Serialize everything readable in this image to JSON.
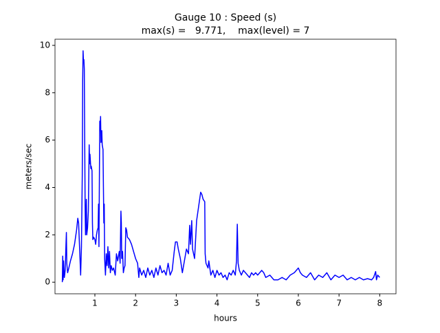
{
  "chart_data": {
    "type": "line",
    "title": "Gauge 10 : Speed (s)",
    "subtitle": "max(s) =   9.771,    max(level) = 7",
    "x_label": "hours",
    "y_label": "meters/sec",
    "xlim": [
      0.02,
      8.4
    ],
    "ylim": [
      -0.489,
      10.26
    ],
    "xticks": [
      1,
      2,
      3,
      4,
      5,
      6,
      7,
      8
    ],
    "yticks": [
      0,
      2,
      4,
      6,
      8,
      10
    ],
    "grid": false,
    "series": [
      {
        "name": "speed",
        "color": "#0000ff",
        "x": [
          0.2,
          0.21,
          0.22,
          0.23,
          0.25,
          0.27,
          0.29,
          0.3,
          0.31,
          0.33,
          0.36,
          0.4,
          0.45,
          0.5,
          0.55,
          0.58,
          0.6,
          0.63,
          0.65,
          0.67,
          0.69,
          0.7,
          0.71,
          0.72,
          0.73,
          0.74,
          0.75,
          0.76,
          0.77,
          0.79,
          0.8,
          0.82,
          0.84,
          0.86,
          0.87,
          0.88,
          0.9,
          0.91,
          0.93,
          0.94,
          0.95,
          0.97,
          1.0,
          1.02,
          1.04,
          1.06,
          1.08,
          1.09,
          1.1,
          1.12,
          1.13,
          1.14,
          1.15,
          1.17,
          1.18,
          1.2,
          1.21,
          1.22,
          1.23,
          1.24,
          1.26,
          1.28,
          1.3,
          1.32,
          1.34,
          1.36,
          1.38,
          1.4,
          1.43,
          1.46,
          1.5,
          1.53,
          1.56,
          1.6,
          1.62,
          1.64,
          1.65,
          1.66,
          1.68,
          1.7,
          1.72,
          1.74,
          1.76,
          1.78,
          1.8,
          1.85,
          1.9,
          1.95,
          2.0,
          2.05,
          2.08,
          2.1,
          2.15,
          2.2,
          2.25,
          2.3,
          2.35,
          2.4,
          2.45,
          2.5,
          2.55,
          2.6,
          2.65,
          2.7,
          2.75,
          2.8,
          2.85,
          2.9,
          2.95,
          2.98,
          3.02,
          3.05,
          3.1,
          3.15,
          3.2,
          3.25,
          3.3,
          3.33,
          3.35,
          3.38,
          3.4,
          3.45,
          3.5,
          3.55,
          3.6,
          3.63,
          3.66,
          3.7,
          3.71,
          3.73,
          3.78,
          3.8,
          3.85,
          3.9,
          3.95,
          4.0,
          4.05,
          4.1,
          4.15,
          4.2,
          4.25,
          4.3,
          4.35,
          4.4,
          4.45,
          4.48,
          4.5,
          4.52,
          4.55,
          4.6,
          4.65,
          4.7,
          4.75,
          4.8,
          4.85,
          4.9,
          4.95,
          5.0,
          5.1,
          5.15,
          5.2,
          5.3,
          5.4,
          5.5,
          5.6,
          5.7,
          5.8,
          5.9,
          5.95,
          6.0,
          6.05,
          6.1,
          6.2,
          6.3,
          6.4,
          6.5,
          6.6,
          6.7,
          6.8,
          6.9,
          7.0,
          7.1,
          7.2,
          7.3,
          7.4,
          7.5,
          7.6,
          7.7,
          7.8,
          7.85,
          7.9,
          7.92,
          7.95,
          8.0
        ],
        "values": [
          0,
          1.1,
          0.1,
          0.9,
          0.2,
          0.5,
          1.6,
          2.1,
          0.8,
          0.4,
          0.6,
          0.9,
          1.2,
          1.6,
          2.2,
          2.7,
          2.5,
          1.2,
          0.3,
          1.5,
          4.5,
          8.5,
          9.771,
          9.3,
          9.4,
          9.0,
          6.0,
          3.2,
          2.0,
          3.5,
          2.0,
          2.3,
          3.0,
          5.8,
          5.0,
          5.4,
          4.8,
          4.9,
          4.7,
          2.5,
          1.8,
          1.9,
          1.8,
          1.6,
          2.0,
          2.2,
          2.3,
          3.3,
          1.5,
          6.8,
          6.4,
          7.0,
          5.9,
          6.4,
          5.8,
          5.6,
          4.0,
          2.5,
          3.3,
          1.0,
          0.3,
          1.2,
          0.7,
          1.5,
          0.6,
          1.3,
          0.4,
          0.7,
          0.5,
          0.6,
          0.3,
          1.2,
          0.9,
          1.3,
          0.8,
          3.0,
          2.5,
          1.0,
          1.3,
          0.4,
          0.6,
          0.7,
          2.3,
          2.2,
          1.9,
          1.8,
          1.6,
          1.3,
          1.0,
          0.8,
          0.2,
          0.6,
          0.3,
          0.5,
          0.2,
          0.6,
          0.3,
          0.5,
          0.2,
          0.6,
          0.3,
          0.7,
          0.4,
          0.5,
          0.3,
          0.8,
          0.3,
          0.5,
          1.3,
          1.7,
          1.7,
          1.4,
          1.0,
          0.4,
          0.9,
          1.4,
          1.2,
          2.4,
          1.6,
          2.6,
          1.4,
          1.0,
          2.6,
          3.2,
          3.8,
          3.7,
          3.5,
          3.4,
          1.2,
          0.8,
          0.6,
          0.9,
          0.3,
          0.5,
          0.2,
          0.5,
          0.3,
          0.4,
          0.2,
          0.3,
          0.1,
          0.4,
          0.3,
          0.5,
          0.3,
          0.9,
          2.45,
          0.8,
          0.5,
          0.3,
          0.5,
          0.4,
          0.3,
          0.2,
          0.4,
          0.3,
          0.4,
          0.3,
          0.5,
          0.4,
          0.2,
          0.3,
          0.1,
          0.1,
          0.2,
          0.1,
          0.3,
          0.4,
          0.5,
          0.6,
          0.4,
          0.3,
          0.2,
          0.4,
          0.1,
          0.3,
          0.2,
          0.4,
          0.1,
          0.3,
          0.2,
          0.3,
          0.1,
          0.2,
          0.1,
          0.2,
          0.1,
          0.15,
          0.1,
          0.2,
          0.45,
          0.1,
          0.3,
          0.2
        ]
      }
    ]
  }
}
